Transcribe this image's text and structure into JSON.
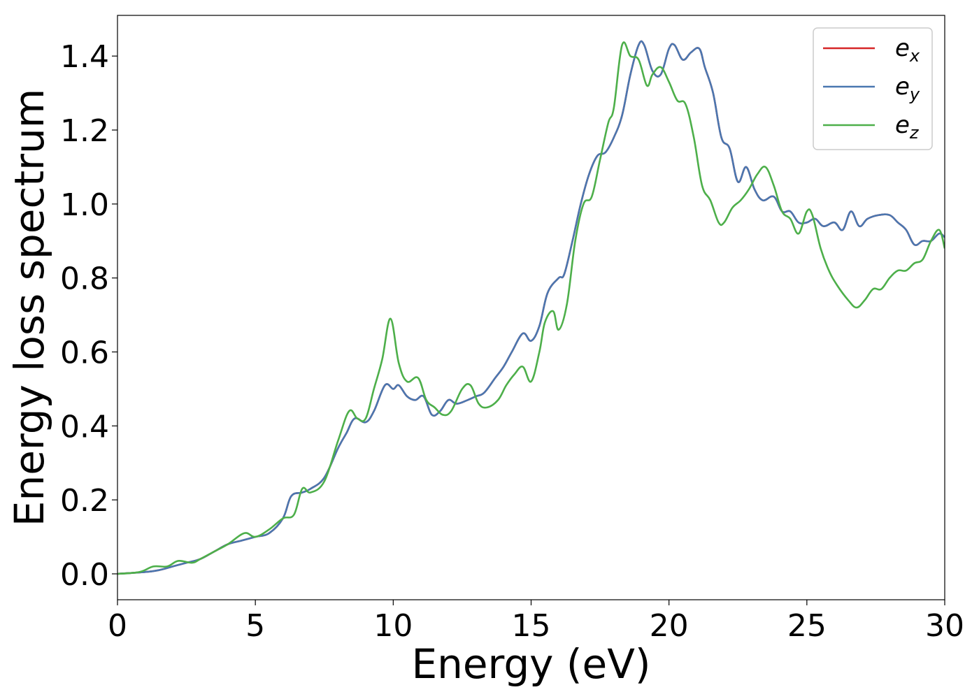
{
  "chart_data": {
    "type": "line",
    "title": "",
    "xlabel": "Energy (eV)",
    "ylabel": "Energy loss spectrum",
    "xlim": [
      0,
      30
    ],
    "ylim": [
      -0.07,
      1.51
    ],
    "xticks": [
      0,
      5,
      10,
      15,
      20,
      25,
      30
    ],
    "xtick_labels": [
      "0",
      "5",
      "10",
      "15",
      "20",
      "25",
      "30"
    ],
    "yticks": [
      0.0,
      0.2,
      0.4,
      0.6,
      0.8,
      1.0,
      1.2,
      1.4
    ],
    "ytick_labels": [
      "0.0",
      "0.2",
      "0.4",
      "0.6",
      "0.8",
      "1.0",
      "1.2",
      "1.4"
    ],
    "grid": false,
    "legend_position": "top-right",
    "series": [
      {
        "name": "e_x",
        "legend_base": "e",
        "legend_sub": "x",
        "color": "#d62728",
        "x": [
          0,
          1,
          1.5,
          2,
          2.5,
          3,
          3.5,
          4,
          4.5,
          5,
          5.5,
          6,
          6.3,
          6.7,
          7,
          7.5,
          8,
          8.3,
          8.6,
          9,
          9.3,
          9.7,
          10,
          10.2,
          10.5,
          10.8,
          11.1,
          11.4,
          11.7,
          12,
          12.3,
          12.7,
          13,
          13.3,
          13.7,
          14,
          14.3,
          14.7,
          15,
          15.3,
          15.6,
          16,
          16.2,
          16.5,
          16.8,
          17.1,
          17.4,
          17.7,
          18,
          18.3,
          18.6,
          18.9,
          19.1,
          19.4,
          19.7,
          20,
          20.2,
          20.5,
          20.8,
          21.1,
          21.3,
          21.6,
          21.9,
          22.2,
          22.5,
          22.8,
          23.1,
          23.4,
          23.8,
          24.1,
          24.4,
          24.7,
          25,
          25.3,
          25.6,
          26,
          26.3,
          26.6,
          26.9,
          27.2,
          27.6,
          28,
          28.3,
          28.6,
          28.9,
          29.2,
          29.5,
          29.8,
          30
        ],
        "y": [
          0.0,
          0.005,
          0.01,
          0.02,
          0.03,
          0.04,
          0.06,
          0.08,
          0.09,
          0.1,
          0.11,
          0.15,
          0.21,
          0.22,
          0.23,
          0.26,
          0.34,
          0.38,
          0.42,
          0.41,
          0.44,
          0.51,
          0.5,
          0.51,
          0.48,
          0.47,
          0.48,
          0.43,
          0.44,
          0.47,
          0.46,
          0.47,
          0.48,
          0.49,
          0.53,
          0.56,
          0.6,
          0.65,
          0.63,
          0.67,
          0.76,
          0.8,
          0.81,
          0.9,
          1.0,
          1.08,
          1.13,
          1.14,
          1.18,
          1.24,
          1.35,
          1.43,
          1.43,
          1.36,
          1.35,
          1.42,
          1.43,
          1.39,
          1.41,
          1.42,
          1.37,
          1.3,
          1.18,
          1.15,
          1.06,
          1.1,
          1.04,
          1.01,
          1.02,
          0.98,
          0.98,
          0.95,
          0.95,
          0.96,
          0.94,
          0.95,
          0.93,
          0.98,
          0.94,
          0.96,
          0.97,
          0.97,
          0.95,
          0.93,
          0.89,
          0.9,
          0.9,
          0.92,
          0.91
        ]
      },
      {
        "name": "e_y",
        "legend_base": "e",
        "legend_sub": "y",
        "color": "#4a77b0",
        "x": [
          0,
          1,
          1.5,
          2,
          2.5,
          3,
          3.5,
          4,
          4.5,
          5,
          5.5,
          6,
          6.3,
          6.7,
          7,
          7.5,
          8,
          8.3,
          8.6,
          9,
          9.3,
          9.7,
          10,
          10.2,
          10.5,
          10.8,
          11.1,
          11.4,
          11.7,
          12,
          12.3,
          12.7,
          13,
          13.3,
          13.7,
          14,
          14.3,
          14.7,
          15,
          15.3,
          15.6,
          16,
          16.2,
          16.5,
          16.8,
          17.1,
          17.4,
          17.7,
          18,
          18.3,
          18.6,
          18.9,
          19.1,
          19.4,
          19.7,
          20,
          20.2,
          20.5,
          20.8,
          21.1,
          21.3,
          21.6,
          21.9,
          22.2,
          22.5,
          22.8,
          23.1,
          23.4,
          23.8,
          24.1,
          24.4,
          24.7,
          25,
          25.3,
          25.6,
          26,
          26.3,
          26.6,
          26.9,
          27.2,
          27.6,
          28,
          28.3,
          28.6,
          28.9,
          29.2,
          29.5,
          29.8,
          30
        ],
        "y": [
          0.0,
          0.005,
          0.01,
          0.02,
          0.03,
          0.04,
          0.06,
          0.08,
          0.09,
          0.1,
          0.11,
          0.15,
          0.21,
          0.22,
          0.23,
          0.26,
          0.34,
          0.38,
          0.42,
          0.41,
          0.44,
          0.51,
          0.5,
          0.51,
          0.48,
          0.47,
          0.48,
          0.43,
          0.44,
          0.47,
          0.46,
          0.47,
          0.48,
          0.49,
          0.53,
          0.56,
          0.6,
          0.65,
          0.63,
          0.67,
          0.76,
          0.8,
          0.81,
          0.9,
          1.0,
          1.08,
          1.13,
          1.14,
          1.18,
          1.24,
          1.35,
          1.43,
          1.43,
          1.36,
          1.35,
          1.42,
          1.43,
          1.39,
          1.41,
          1.42,
          1.37,
          1.3,
          1.18,
          1.15,
          1.06,
          1.1,
          1.04,
          1.01,
          1.02,
          0.98,
          0.98,
          0.95,
          0.95,
          0.96,
          0.94,
          0.95,
          0.93,
          0.98,
          0.94,
          0.96,
          0.97,
          0.97,
          0.95,
          0.93,
          0.89,
          0.9,
          0.9,
          0.92,
          0.91
        ]
      },
      {
        "name": "e_z",
        "legend_base": "e",
        "legend_sub": "z",
        "color": "#4daf4a",
        "x": [
          0,
          0.8,
          1.3,
          1.8,
          2.2,
          2.7,
          3,
          3.5,
          4,
          4.6,
          5,
          5.5,
          6,
          6.4,
          6.7,
          7,
          7.5,
          8,
          8.4,
          8.7,
          9,
          9.3,
          9.6,
          9.9,
          10.2,
          10.5,
          10.9,
          11.2,
          11.5,
          11.8,
          12.1,
          12.5,
          12.8,
          13.1,
          13.4,
          13.8,
          14.1,
          14.4,
          14.7,
          15,
          15.3,
          15.5,
          15.8,
          16,
          16.3,
          16.6,
          16.9,
          17.2,
          17.5,
          17.8,
          18,
          18.3,
          18.6,
          18.9,
          19.2,
          19.4,
          19.7,
          20,
          20.3,
          20.6,
          20.9,
          21.2,
          21.5,
          21.8,
          22,
          22.3,
          22.6,
          22.9,
          23.2,
          23.5,
          23.8,
          24.1,
          24.4,
          24.7,
          25,
          25.2,
          25.5,
          25.8,
          26.1,
          26.5,
          26.8,
          27.1,
          27.4,
          27.7,
          28,
          28.3,
          28.6,
          28.9,
          29.2,
          29.5,
          29.8,
          30
        ],
        "y": [
          0.0,
          0.005,
          0.02,
          0.02,
          0.035,
          0.03,
          0.04,
          0.06,
          0.08,
          0.11,
          0.1,
          0.12,
          0.15,
          0.16,
          0.23,
          0.22,
          0.25,
          0.36,
          0.44,
          0.42,
          0.42,
          0.5,
          0.58,
          0.69,
          0.57,
          0.52,
          0.53,
          0.47,
          0.45,
          0.43,
          0.44,
          0.5,
          0.51,
          0.46,
          0.45,
          0.47,
          0.51,
          0.54,
          0.56,
          0.52,
          0.6,
          0.68,
          0.71,
          0.66,
          0.73,
          0.9,
          1.0,
          1.02,
          1.12,
          1.22,
          1.26,
          1.43,
          1.4,
          1.39,
          1.32,
          1.35,
          1.37,
          1.33,
          1.28,
          1.27,
          1.18,
          1.05,
          1.01,
          0.95,
          0.95,
          0.99,
          1.01,
          1.04,
          1.08,
          1.1,
          1.05,
          0.98,
          0.96,
          0.92,
          0.98,
          0.97,
          0.88,
          0.82,
          0.78,
          0.74,
          0.72,
          0.74,
          0.77,
          0.77,
          0.8,
          0.82,
          0.82,
          0.84,
          0.85,
          0.9,
          0.93,
          0.88
        ]
      }
    ]
  }
}
